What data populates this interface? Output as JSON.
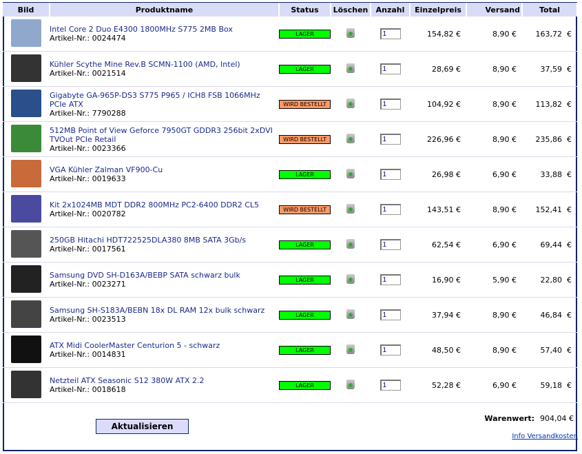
{
  "headers": [
    "Bild",
    "Produktname",
    "Status",
    "Löschen",
    "Anzahl",
    "Einzelpreis",
    "Versand",
    "Total"
  ],
  "colors": {
    "lager": "#00ff00",
    "bestellt": "#ff9966",
    "header_bg": "#d9dcf7",
    "link": "#1a2a8a"
  },
  "items": [
    {
      "name": "Intel Core 2 Duo E4300 1800MHz S775 2MB Box",
      "art": "Artikel-Nr.: 0024474",
      "status": "LAGER",
      "qty": "1",
      "price": "154,82 €",
      "ship": "8,90 €",
      "total": "163,72  €",
      "thumb": "#8fa8cc"
    },
    {
      "name": "Kühler Scythe Mine Rev.B SCMN-1100 (AMD, Intel)",
      "art": "Artikel-Nr.: 0021514",
      "status": "LAGER",
      "qty": "1",
      "price": "28,69 €",
      "ship": "8,90 €",
      "total": "37,59  €",
      "thumb": "#333"
    },
    {
      "name": "Gigabyte GA-965P-DS3 S775 P965 / ICH8 FSB 1066MHz PCIe ATX",
      "art": "Artikel-Nr.: 7790288",
      "status": "WIRD BESTELLT",
      "qty": "1",
      "price": "104,92 €",
      "ship": "8,90 €",
      "total": "113,82  €",
      "thumb": "#2a4f8a"
    },
    {
      "name": "512MB Point of View Geforce 7950GT GDDR3 256bit 2xDVI TVOut PCIe Retail",
      "art": "Artikel-Nr.: 0023366",
      "status": "WIRD BESTELLT",
      "qty": "1",
      "price": "226,96 €",
      "ship": "8,90 €",
      "total": "235,86  €",
      "thumb": "#3a8a3a"
    },
    {
      "name": "VGA Kühler Zalman VF900-Cu",
      "art": "Artikel-Nr.: 0019633",
      "status": "LAGER",
      "qty": "1",
      "price": "26,98 €",
      "ship": "6,90 €",
      "total": "33,88  €",
      "thumb": "#c86a3a"
    },
    {
      "name": "Kit 2x1024MB MDT DDR2 800MHz PC2-6400 DDR2 CL5",
      "art": "Artikel-Nr.: 0020782",
      "status": "WIRD BESTELLT",
      "qty": "1",
      "price": "143,51 €",
      "ship": "8,90 €",
      "total": "152,41  €",
      "thumb": "#4a4aa0"
    },
    {
      "name": "250GB Hitachi HDT722525DLA380 8MB SATA 3Gb/s",
      "art": "Artikel-Nr.: 0017561",
      "status": "LAGER",
      "qty": "1",
      "price": "62,54 €",
      "ship": "6,90 €",
      "total": "69,44  €",
      "thumb": "#555"
    },
    {
      "name": "Samsung DVD SH-D163A/BEBP SATA schwarz bulk",
      "art": "Artikel-Nr.: 0023271",
      "status": "LAGER",
      "qty": "1",
      "price": "16,90 €",
      "ship": "5,90 €",
      "total": "22,80  €",
      "thumb": "#222"
    },
    {
      "name": "Samsung SH-S183A/BEBN 18x DL RAM 12x bulk schwarz",
      "art": "Artikel-Nr.: 0023513",
      "status": "LAGER",
      "qty": "1",
      "price": "37,94 €",
      "ship": "8,90 €",
      "total": "46,84  €",
      "thumb": "#444"
    },
    {
      "name": "ATX Midi CoolerMaster Centurion 5 - schwarz",
      "art": "Artikel-Nr.: 0014831",
      "status": "LAGER",
      "qty": "1",
      "price": "48,50 €",
      "ship": "8,90 €",
      "total": "57,40  €",
      "thumb": "#111"
    },
    {
      "name": "Netzteil ATX Seasonic S12 380W ATX 2.2",
      "art": "Artikel-Nr.: 0018618",
      "status": "LAGER",
      "qty": "1",
      "price": "52,28 €",
      "ship": "6,90 €",
      "total": "59,18  €",
      "thumb": "#333"
    }
  ],
  "footer": {
    "update": "Aktualisieren",
    "warenwert_label": "Warenwert:",
    "warenwert": "904,04 €",
    "info": "Info Versandkosten"
  }
}
